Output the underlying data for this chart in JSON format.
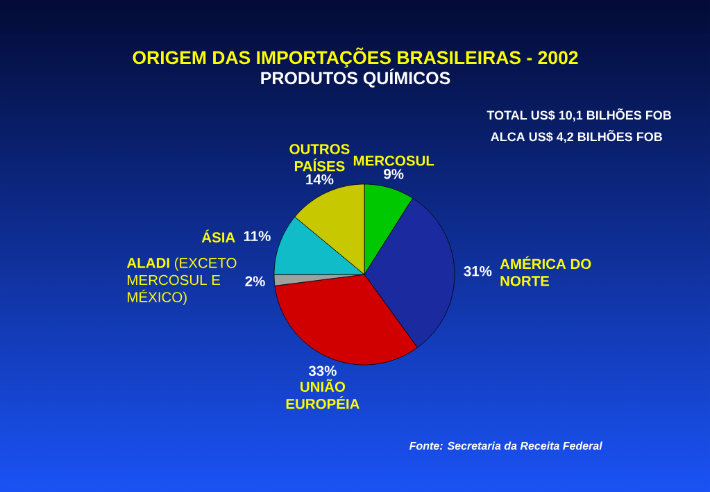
{
  "chart_data": {
    "type": "pie",
    "title": "ORIGEM DAS IMPORTAÇÕES BRASILEIRAS - 2002",
    "subtitle": "PRODUTOS QUÍMICOS",
    "categories": [
      "MERCOSUL",
      "AMÉRICA DO NORTE",
      "UNIÃO EUROPÉIA",
      "**ALADI** (EXCETO MERCOSUL E MÉXICO)",
      "ÁSIA",
      "OUTROS PAÍSES"
    ],
    "values": [
      9,
      31,
      33,
      2,
      11,
      14
    ],
    "colors": [
      "#00c800",
      "#1c2aa0",
      "#d00000",
      "#a0a0a0",
      "#10bcc8",
      "#c8c800"
    ],
    "value_labels": [
      "9%",
      "31%",
      "33%",
      "2%",
      "11%",
      "14%"
    ],
    "annotations": [
      "TOTAL US$ 10,1 BILHÕES FOB",
      "ALCA US$ 4,2 BILHÕES FOB",
      "Fonte: Secretaria da Receita Federal"
    ]
  }
}
